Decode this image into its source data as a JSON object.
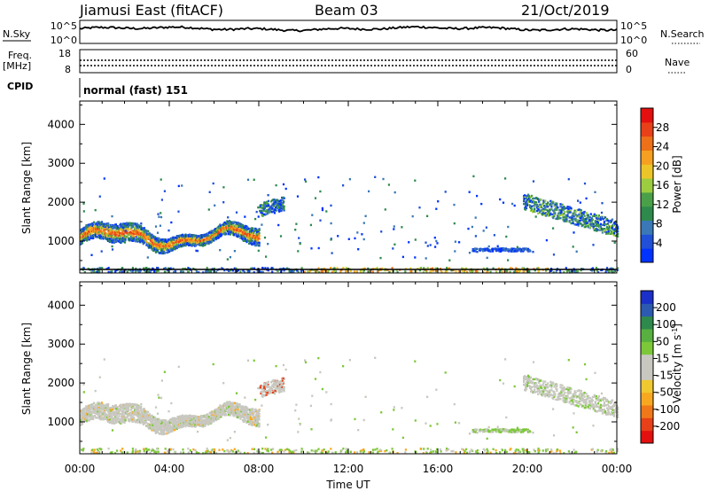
{
  "header": {
    "station": "Jiamusi East (fitACF)",
    "beam": "Beam 03",
    "date": "21/Oct/2019"
  },
  "summary_panels": {
    "nsky_label": "N.Sky",
    "nsky_top": "10^5",
    "nsky_bottom": "10^0",
    "nsearch_label": "N.Search",
    "nsearch_top": "10^5",
    "nsearch_bottom": "10^0",
    "freq_label": "Freq.",
    "freq_unit": "[MHz]",
    "freq_top": "18",
    "freq_bottom": "8",
    "nave_label": "Nave",
    "nave_top": "60",
    "nave_bottom": "0",
    "cpid_label": "CPID",
    "cpid_value": "normal (fast) 151"
  },
  "power_colorbar": {
    "title": "Power [dB]",
    "ticks": [
      "28",
      "24",
      "20",
      "16",
      "12",
      "8",
      "4"
    ],
    "colors": [
      "#0033ff",
      "#2050d8",
      "#3a78b8",
      "#2e8a4c",
      "#4aa048",
      "#9ccc40",
      "#ecc628",
      "#f5a020",
      "#ee7018",
      "#e84018",
      "#e41010"
    ]
  },
  "velocity_colorbar": {
    "title": "Velocity [m s^-1]",
    "ticks": [
      "200",
      "100",
      "50",
      "15",
      "-15",
      "-50",
      "-100",
      "-200"
    ],
    "colors": [
      "#e41010",
      "#e84018",
      "#f07818",
      "#f8a820",
      "#f0c830",
      "#c8c8c0",
      "#c8c8c0",
      "#7cc838",
      "#58b040",
      "#2e8a4c",
      "#2c5ab0",
      "#1a30c8"
    ]
  },
  "chart_data": [
    {
      "type": "heatmap",
      "title": "Power",
      "xlabel": "",
      "ylabel": "Slant Range [km]",
      "x_ticks": [
        "00:00",
        "04:00",
        "08:00",
        "12:00",
        "16:00",
        "20:00",
        "00:00"
      ],
      "y_ticks": [
        "1000",
        "2000",
        "3000",
        "4000"
      ],
      "xlim": [
        0,
        24
      ],
      "ylim": [
        180,
        4600
      ],
      "colorbar_range": [
        0,
        30
      ],
      "echo_regions": [
        {
          "t": [
            0.0,
            8.0
          ],
          "range_center_km": 1100,
          "range_width_km": 450,
          "value": "12-24 dB"
        },
        {
          "t": [
            8.0,
            9.0
          ],
          "range_center_km": 1800,
          "range_width_km": 250,
          "value": "4-12 dB"
        },
        {
          "t": [
            18.0,
            20.0
          ],
          "range_center_km": 800,
          "range_width_km": 100,
          "value": "4-8 dB"
        },
        {
          "t": [
            20.0,
            24.0
          ],
          "range_center_km": 1500,
          "range_width_km": 500,
          "value": "4-16 dB"
        },
        {
          "t": [
            0.0,
            24.0
          ],
          "range_center_km": 280,
          "range_width_km": 120,
          "value": "ground scatter near range gate 0"
        }
      ]
    },
    {
      "type": "heatmap",
      "title": "Velocity",
      "xlabel": "Time UT",
      "ylabel": "Slant Range [km]",
      "x_ticks": [
        "00:00",
        "04:00",
        "08:00",
        "12:00",
        "16:00",
        "20:00",
        "00:00"
      ],
      "y_ticks": [
        "1000",
        "2000",
        "3000",
        "4000"
      ],
      "xlim": [
        0,
        24
      ],
      "ylim": [
        180,
        4600
      ],
      "colorbar_range": [
        -200,
        200
      ],
      "echo_regions": [
        {
          "t": [
            0.0,
            8.0
          ],
          "range_center_km": 1150,
          "range_width_km": 450,
          "value": "-15 to 15 m/s"
        },
        {
          "t": [
            20.0,
            24.0
          ],
          "range_center_km": 1500,
          "range_width_km": 500,
          "value": "-15 to 15 m/s"
        },
        {
          "t": [
            18.0,
            20.0
          ],
          "range_center_km": 800,
          "range_width_km": 100,
          "value": "15 to 50 m/s"
        }
      ]
    }
  ]
}
